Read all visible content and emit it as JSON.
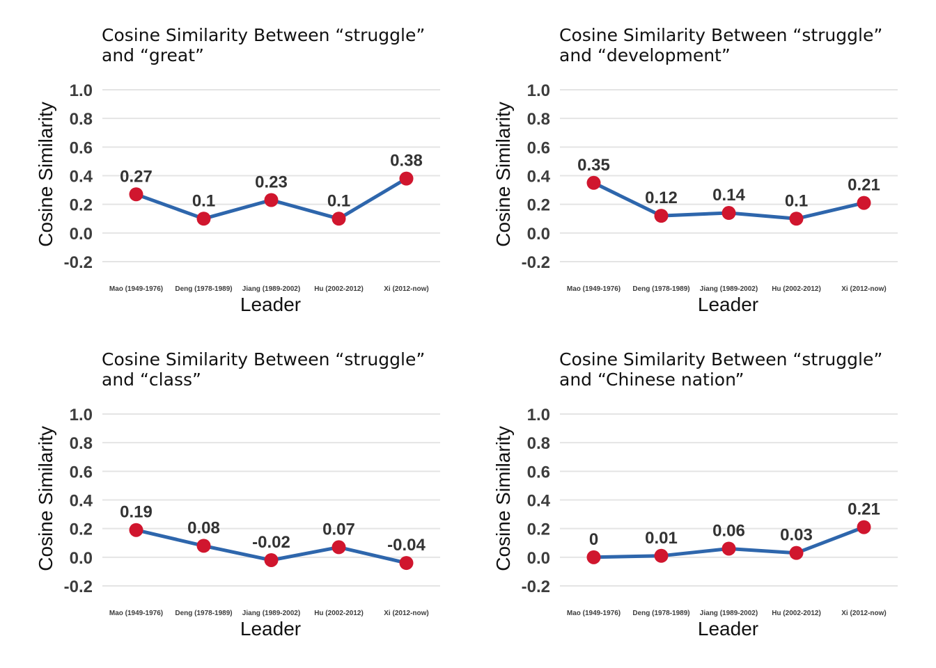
{
  "colors": {
    "line": "#2e66ac",
    "point": "#d0162e",
    "grid": "#e4e4e4",
    "text": "#3d3d3d"
  },
  "chart_data": [
    {
      "type": "line",
      "title_line1": "Cosine Similarity Between “struggle”",
      "title_line2": "and “great”",
      "xlabel": "Leader",
      "ylabel": "Cosine Similarity",
      "categories": [
        "Mao (1949-1976)",
        "Deng (1978-1989)",
        "Jiang (1989-2002)",
        "Hu (2002-2012)",
        "Xi (2012-now)"
      ],
      "values": [
        0.27,
        0.1,
        0.23,
        0.1,
        0.38
      ],
      "data_labels": [
        "0.27",
        "0.1",
        "0.23",
        "0.1",
        "0.38"
      ],
      "ylim": [
        -0.2,
        1.0
      ],
      "yticks": [
        "-0.2",
        "0.0",
        "0.2",
        "0.4",
        "0.6",
        "0.8",
        "1.0"
      ],
      "grid": true
    },
    {
      "type": "line",
      "title_line1": "Cosine Similarity Between “struggle”",
      "title_line2": "and “development”",
      "xlabel": "Leader",
      "ylabel": "Cosine Similarity",
      "categories": [
        "Mao (1949-1976)",
        "Deng (1978-1989)",
        "Jiang (1989-2002)",
        "Hu (2002-2012)",
        "Xi (2012-now)"
      ],
      "values": [
        0.35,
        0.12,
        0.14,
        0.1,
        0.21
      ],
      "data_labels": [
        "0.35",
        "0.12",
        "0.14",
        "0.1",
        "0.21"
      ],
      "ylim": [
        -0.2,
        1.0
      ],
      "yticks": [
        "-0.2",
        "0.0",
        "0.2",
        "0.4",
        "0.6",
        "0.8",
        "1.0"
      ],
      "grid": true
    },
    {
      "type": "line",
      "title_line1": "Cosine Similarity Between “struggle”",
      "title_line2": "and “class”",
      "xlabel": "Leader",
      "ylabel": "Cosine Similarity",
      "categories": [
        "Mao (1949-1976)",
        "Deng (1978-1989)",
        "Jiang (1989-2002)",
        "Hu (2002-2012)",
        "Xi (2012-now)"
      ],
      "values": [
        0.19,
        0.08,
        -0.02,
        0.07,
        -0.04
      ],
      "data_labels": [
        "0.19",
        "0.08",
        "-0.02",
        "0.07",
        "-0.04"
      ],
      "ylim": [
        -0.2,
        1.0
      ],
      "yticks": [
        "-0.2",
        "0.0",
        "0.2",
        "0.4",
        "0.6",
        "0.8",
        "1.0"
      ],
      "grid": true
    },
    {
      "type": "line",
      "title_line1": "Cosine Similarity Between “struggle”",
      "title_line2": "and “Chinese nation”",
      "xlabel": "Leader",
      "ylabel": "Cosine Similarity",
      "categories": [
        "Mao (1949-1976)",
        "Deng (1978-1989)",
        "Jiang (1989-2002)",
        "Hu (2002-2012)",
        "Xi (2012-now)"
      ],
      "values": [
        0,
        0.01,
        0.06,
        0.03,
        0.21
      ],
      "data_labels": [
        "0",
        "0.01",
        "0.06",
        "0.03",
        "0.21"
      ],
      "ylim": [
        -0.2,
        1.0
      ],
      "yticks": [
        "-0.2",
        "0.0",
        "0.2",
        "0.4",
        "0.6",
        "0.8",
        "1.0"
      ],
      "grid": true
    }
  ]
}
